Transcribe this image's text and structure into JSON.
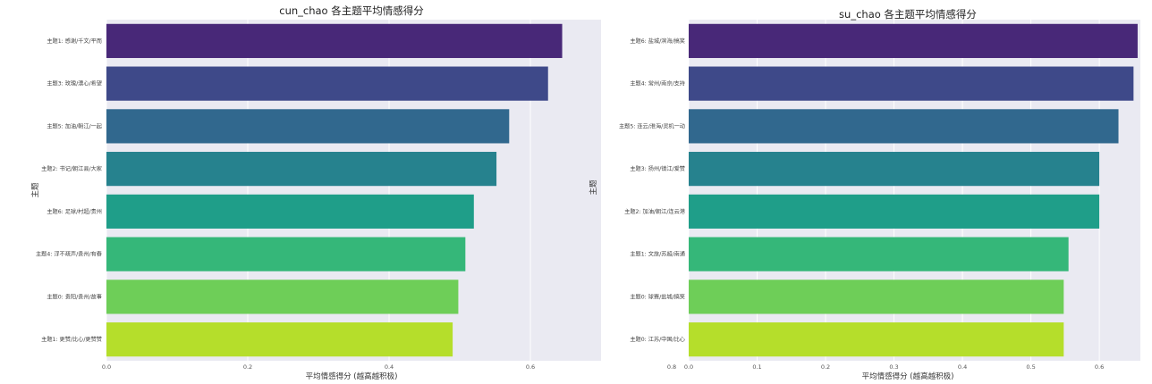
{
  "chart_data": [
    {
      "type": "bar",
      "orientation": "horizontal",
      "title": "cun_chao 各主题平均情感得分",
      "xlabel": "平均情感得分 (越高越积极)",
      "ylabel": "主题",
      "categories": [
        "主题1: 感谢/千文/平而",
        "主题3: 玫瑰/漂心/希望",
        "主题5: 加油/朝江/一起",
        "主题2: 书记/朝江县/大家",
        "主题6: 足球/村超/贵州",
        "主题4: 浮不疏声/贵州/有春",
        "主题0: 贵阳/贵州/故事",
        "主题1: 更赞/比心/更赞赞"
      ],
      "values": [
        0.645,
        0.625,
        0.57,
        0.552,
        0.52,
        0.508,
        0.498,
        0.49
      ],
      "xlim": [
        0,
        0.7
      ],
      "xticks": [
        "0.0",
        "0.2",
        "0.4",
        "0.6",
        "0.8"
      ],
      "colors": [
        "#482878",
        "#3e4989",
        "#31688e",
        "#26828e",
        "#1f9e89",
        "#35b779",
        "#6ece58",
        "#b5de2b"
      ],
      "grid": true
    },
    {
      "type": "bar",
      "orientation": "horizontal",
      "title": "su_chao 各主题平均情感得分",
      "xlabel": "平均情感得分 (越高越积极)",
      "ylabel": "主题",
      "categories": [
        "主题6: 盐城/滨海/搞笑",
        "主题4: 常州/南京/支持",
        "主题5: 连云/淮海/灵机一动",
        "主题3: 扬州/镇江/爱赞",
        "主题2: 加油/朝江/连云港",
        "主题1: 文旅/苏超/南通",
        "主题0: 球赛/盐城/搞笑",
        "主题0: 江苏/中国/比心"
      ],
      "values": [
        0.656,
        0.65,
        0.628,
        0.6,
        0.6,
        0.555,
        0.548,
        0.548
      ],
      "xlim": [
        0,
        0.66
      ],
      "xticks": [
        "0.0",
        "0.1",
        "0.2",
        "0.3",
        "0.4",
        "0.5",
        "0.6"
      ],
      "colors": [
        "#482878",
        "#3e4989",
        "#31688e",
        "#26828e",
        "#1f9e89",
        "#35b779",
        "#6ece58",
        "#b5de2b"
      ],
      "grid": true
    }
  ]
}
